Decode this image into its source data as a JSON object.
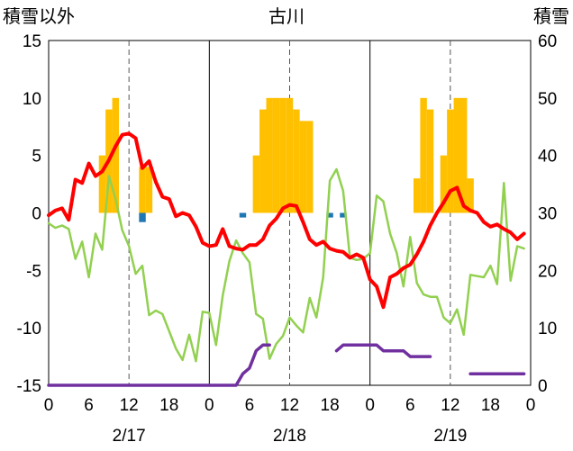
{
  "chart_data": {
    "type": "line",
    "title": "古川",
    "left_axis_label": "積雪以外",
    "right_axis_label": "積雪",
    "ylim_left": [
      -15,
      15
    ],
    "yticks_left": [
      15,
      10,
      5,
      0,
      -5,
      -10,
      -15
    ],
    "ylim_right": [
      0,
      60
    ],
    "yticks_right": [
      60,
      50,
      40,
      30,
      20,
      10,
      0
    ],
    "x_range_hours": [
      0,
      72
    ],
    "x_tick_labels": [
      "0",
      "6",
      "12",
      "18",
      "0",
      "6",
      "12",
      "18",
      "0",
      "6",
      "12",
      "18",
      "0"
    ],
    "date_labels": [
      "2/17",
      "2/18",
      "2/19"
    ],
    "grid": "dashed vertical lines at 12:00 of each day, solid lines at 0:00",
    "colors": {
      "temperature": "#ff0000",
      "snowfall": "#ffc000",
      "precipitation": "#1f77b4",
      "wind": "#92d050",
      "snow_depth": "#7030a0"
    },
    "snowfall_bars": {
      "axis": "left",
      "x": [
        8,
        9,
        10,
        14,
        15,
        31,
        32,
        33,
        34,
        35,
        36,
        37,
        38,
        39,
        55,
        56,
        57,
        59,
        60,
        61,
        62,
        63
      ],
      "values": [
        5,
        9,
        10,
        4,
        4,
        5,
        9,
        10,
        10,
        10,
        10,
        9,
        8,
        8,
        3,
        10,
        9,
        5,
        9,
        10,
        10,
        3
      ]
    },
    "precipitation_bars": {
      "axis": "left",
      "x": [
        14,
        29,
        42,
        44
      ],
      "values": [
        -0.8,
        -0.4,
        -0.4,
        -0.4
      ]
    },
    "temperature": {
      "axis": "left",
      "x": [
        0,
        1,
        2,
        3,
        4,
        5,
        6,
        7,
        8,
        9,
        10,
        11,
        12,
        13,
        14,
        15,
        16,
        17,
        18,
        19,
        20,
        21,
        22,
        23,
        24,
        25,
        26,
        27,
        28,
        29,
        30,
        31,
        32,
        33,
        34,
        35,
        36,
        37,
        38,
        39,
        40,
        41,
        42,
        43,
        44,
        45,
        46,
        47,
        48,
        49,
        50,
        51,
        52,
        53,
        54,
        55,
        56,
        57,
        58,
        59,
        60,
        61,
        62,
        63,
        64,
        65,
        66,
        67,
        68,
        69,
        70,
        71
      ],
      "values": [
        -0.2,
        0.2,
        0.4,
        -0.6,
        2.9,
        2.6,
        4.3,
        3.2,
        3.6,
        4.6,
        5.8,
        6.8,
        6.9,
        6.5,
        3.9,
        4.5,
        2.7,
        1.4,
        1.2,
        -0.3,
        0,
        -0.2,
        -1.2,
        -2.6,
        -2.9,
        -2.8,
        -1.4,
        -2.9,
        -3.1,
        -3.2,
        -2.8,
        -2.8,
        -2.3,
        -1.1,
        -0.5,
        0.4,
        0.7,
        0.6,
        -0.8,
        -2.3,
        -2.8,
        -2.5,
        -3.1,
        -3.3,
        -3.4,
        -3.9,
        -3.6,
        -3.9,
        -5.8,
        -6.4,
        -8.2,
        -5.6,
        -5.3,
        -4.8,
        -4.5,
        -3.6,
        -2.5,
        -1.1,
        0,
        0.9,
        1.9,
        2.2,
        0.6,
        0.2,
        0,
        -0.8,
        -1.2,
        -1,
        -1.4,
        -1.7,
        -2.3,
        -1.8
      ]
    },
    "wind_speed": {
      "axis": "left",
      "x": [
        0,
        1,
        2,
        3,
        4,
        5,
        6,
        7,
        8,
        9,
        10,
        11,
        12,
        13,
        14,
        15,
        16,
        17,
        18,
        19,
        20,
        21,
        22,
        23,
        24,
        25,
        26,
        27,
        28,
        29,
        30,
        31,
        32,
        33,
        34,
        35,
        36,
        37,
        38,
        39,
        40,
        41,
        42,
        43,
        44,
        45,
        46,
        47,
        48,
        49,
        50,
        51,
        52,
        53,
        54,
        55,
        56,
        57,
        58,
        59,
        60,
        61,
        62,
        63,
        64,
        65,
        66,
        67,
        68,
        69,
        70,
        71
      ],
      "values": [
        -0.9,
        -1.3,
        -1.1,
        -1.4,
        -4,
        -2.5,
        -5.6,
        -1.8,
        -3.2,
        3.2,
        1.2,
        -1.5,
        -2.9,
        -5.3,
        -4.6,
        -8.9,
        -8.5,
        -8.8,
        -10.3,
        -11.8,
        -12.8,
        -10.6,
        -12.9,
        -8.6,
        -8.7,
        -11.5,
        -7.2,
        -4.2,
        -2.4,
        -3.5,
        -4.3,
        -8.8,
        -9.2,
        -12.7,
        -11.4,
        -10.7,
        -9.1,
        -9.8,
        -10.4,
        -7.4,
        -9.1,
        -5.6,
        2.8,
        3.8,
        1.9,
        -3.9,
        -4.1,
        -4,
        -3.5,
        1.5,
        1,
        -1.8,
        -3.5,
        -6.4,
        -2.1,
        -6.1,
        -7.1,
        -7.3,
        -7.3,
        -9.1,
        -9.6,
        -8.4,
        -10.6,
        -5.4,
        -5.5,
        -5.6,
        -4.6,
        -6.2,
        2.6,
        -5.9,
        -2.9,
        -3.1
      ]
    },
    "snow_depth": {
      "axis": "right",
      "segments": [
        {
          "x": [
            0,
            28,
            29,
            30,
            31,
            32,
            33
          ],
          "values": [
            0,
            0,
            2,
            3,
            6,
            7,
            7
          ]
        },
        {
          "x": [
            43,
            44,
            45,
            46,
            47,
            48,
            49,
            50,
            51,
            52,
            53,
            54,
            55,
            56,
            57
          ],
          "values": [
            6,
            7,
            7,
            7,
            7,
            7,
            7,
            6,
            6,
            6,
            6,
            5,
            5,
            5,
            5
          ]
        },
        {
          "x": [
            63,
            71
          ],
          "values": [
            2,
            2
          ]
        }
      ]
    }
  }
}
